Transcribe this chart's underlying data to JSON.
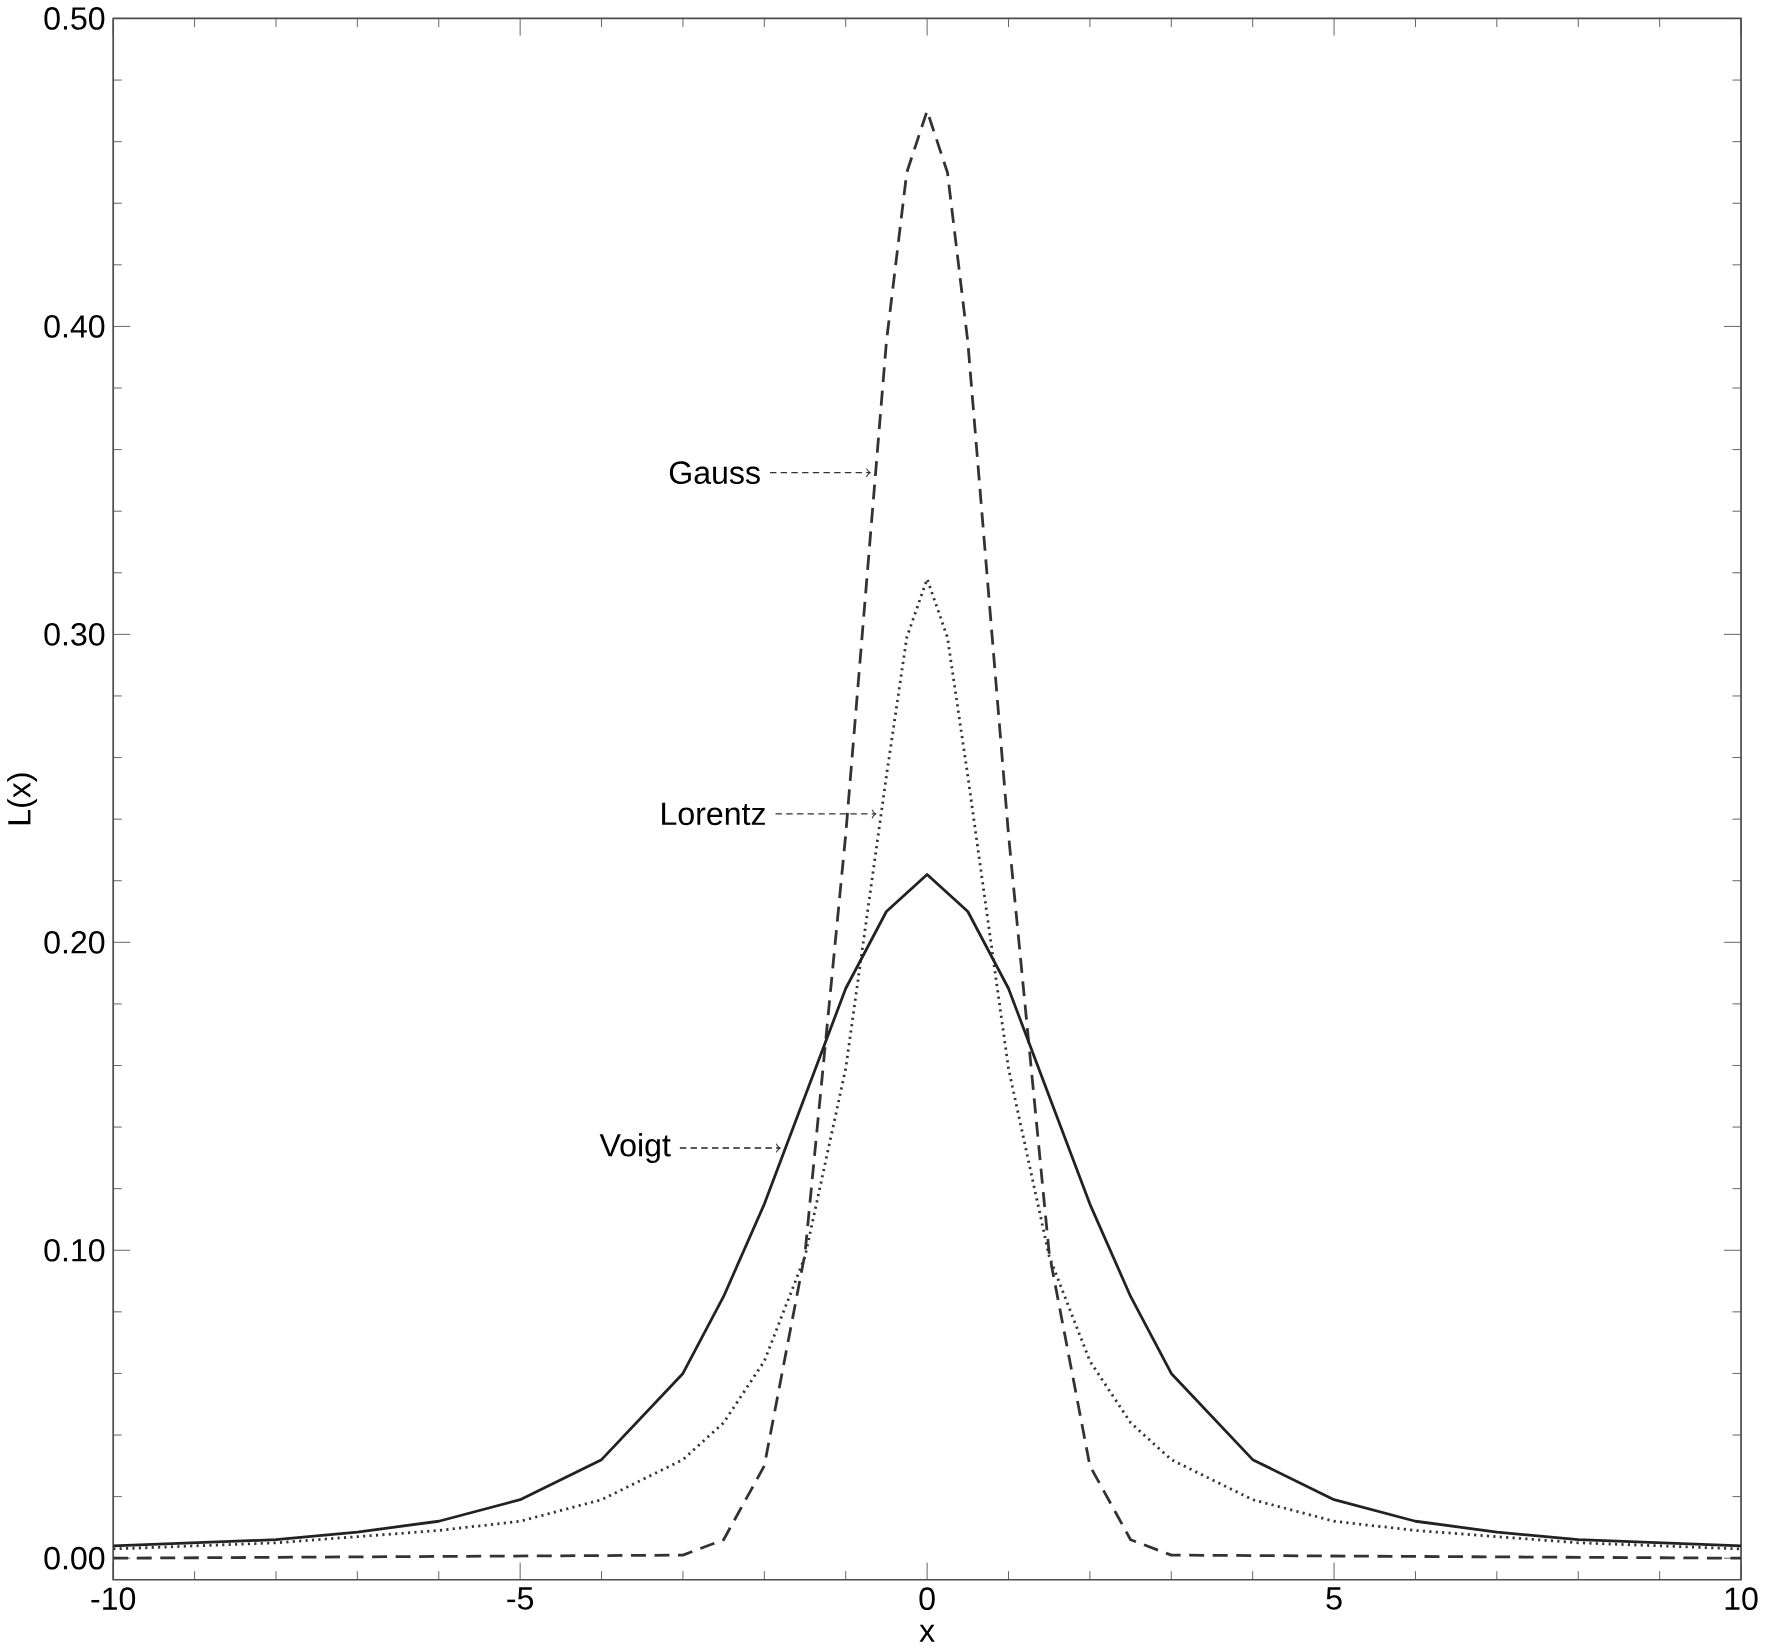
{
  "chart_data": {
    "type": "line",
    "xlabel": "x",
    "ylabel": "L(x)",
    "xlim": [
      -10,
      10
    ],
    "ylim": [
      -0.007,
      0.5
    ],
    "xticks": [
      -10,
      -5,
      0,
      5,
      10
    ],
    "yticks": [
      {
        "value": 0,
        "label": "0.00"
      },
      {
        "value": 0.1,
        "label": "0.10"
      },
      {
        "value": 0.2,
        "label": "0.20"
      },
      {
        "value": 0.3,
        "label": "0.30"
      },
      {
        "value": 0.4,
        "label": "0.40"
      },
      {
        "value": 0.5,
        "label": "0.50"
      }
    ],
    "grid": false,
    "legend": "left",
    "marker": "none",
    "series": [
      {
        "name": "Gauss",
        "color": "#333333",
        "line_style": "dashed",
        "x": [
          -10,
          -3,
          -2.5,
          -2,
          -1.5,
          -1,
          -0.5,
          -0.25,
          0,
          0.25,
          0.5,
          1,
          1.5,
          2,
          2.5,
          3,
          10
        ],
        "values": [
          0,
          0.001,
          0.006,
          0.03,
          0.099,
          0.235,
          0.395,
          0.45,
          0.47,
          0.45,
          0.395,
          0.235,
          0.099,
          0.03,
          0.006,
          0.001,
          0
        ]
      },
      {
        "name": "Lorentz",
        "color": "#333333",
        "line_style": "dotted",
        "x": [
          -10,
          -8,
          -6,
          -5,
          -4,
          -3,
          -2.5,
          -2,
          -1.5,
          -1,
          -0.5,
          -0.25,
          0,
          0.25,
          0.5,
          1,
          1.5,
          2,
          2.5,
          3,
          4,
          5,
          6,
          8,
          10
        ],
        "values": [
          0.003,
          0.005,
          0.009,
          0.012,
          0.019,
          0.032,
          0.044,
          0.064,
          0.098,
          0.159,
          0.254,
          0.299,
          0.318,
          0.299,
          0.254,
          0.159,
          0.098,
          0.064,
          0.044,
          0.032,
          0.019,
          0.012,
          0.009,
          0.005,
          0.003
        ]
      },
      {
        "name": "Voigt",
        "color": "#222222",
        "line_style": "solid",
        "x": [
          -10,
          -8,
          -7,
          -6,
          -5,
          -4,
          -3,
          -2.5,
          -2,
          -1.5,
          -1,
          -0.5,
          0,
          0.5,
          1,
          1.5,
          2,
          2.5,
          3,
          4,
          5,
          6,
          7,
          8,
          10
        ],
        "values": [
          0.004,
          0.006,
          0.0085,
          0.012,
          0.019,
          0.032,
          0.06,
          0.085,
          0.115,
          0.15,
          0.185,
          0.21,
          0.222,
          0.21,
          0.185,
          0.15,
          0.115,
          0.085,
          0.06,
          0.032,
          0.019,
          0.012,
          0.0085,
          0.006,
          0.004
        ]
      }
    ]
  }
}
